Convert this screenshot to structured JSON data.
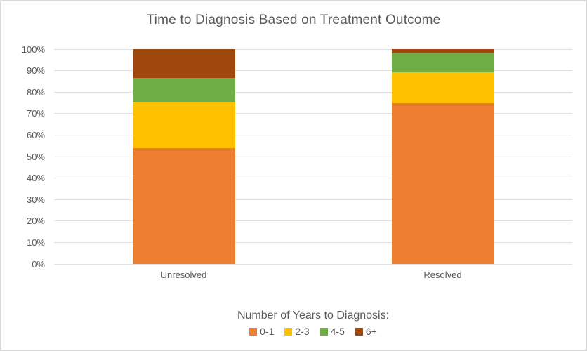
{
  "title": "Time to Diagnosis Based on Treatment Outcome",
  "colors": {
    "text": "#595959",
    "gridline": "#e0e0e0",
    "border": "#d9d9d9",
    "background": "#ffffff",
    "series_0_1": "#ED7D31",
    "series_2_3": "#FFC000",
    "series_4_5": "#70AD47",
    "series_6_plus": "#9E480E"
  },
  "chart_data": {
    "type": "bar",
    "subtype": "stacked-100",
    "title": "Time to Diagnosis Based on Treatment Outcome",
    "categories": [
      "Unresolved",
      "Resolved"
    ],
    "series": [
      {
        "name": "0-1",
        "color": "#ED7D31",
        "values": [
          54.0,
          74.7
        ]
      },
      {
        "name": "2-3",
        "color": "#FFC000",
        "values": [
          21.5,
          14.6
        ]
      },
      {
        "name": "4-5",
        "color": "#70AD47",
        "values": [
          11.2,
          8.6
        ]
      },
      {
        "name": "6+",
        "color": "#9E480E",
        "values": [
          13.3,
          2.1
        ]
      }
    ],
    "y_ticks": [
      "0%",
      "10%",
      "20%",
      "30%",
      "40%",
      "50%",
      "60%",
      "70%",
      "80%",
      "90%",
      "100%"
    ],
    "ylim": [
      0,
      100
    ],
    "xlabel": "",
    "ylabel": "",
    "grid": true,
    "legend_title": "Number of Years to Diagnosis:",
    "legend_position": "bottom"
  }
}
